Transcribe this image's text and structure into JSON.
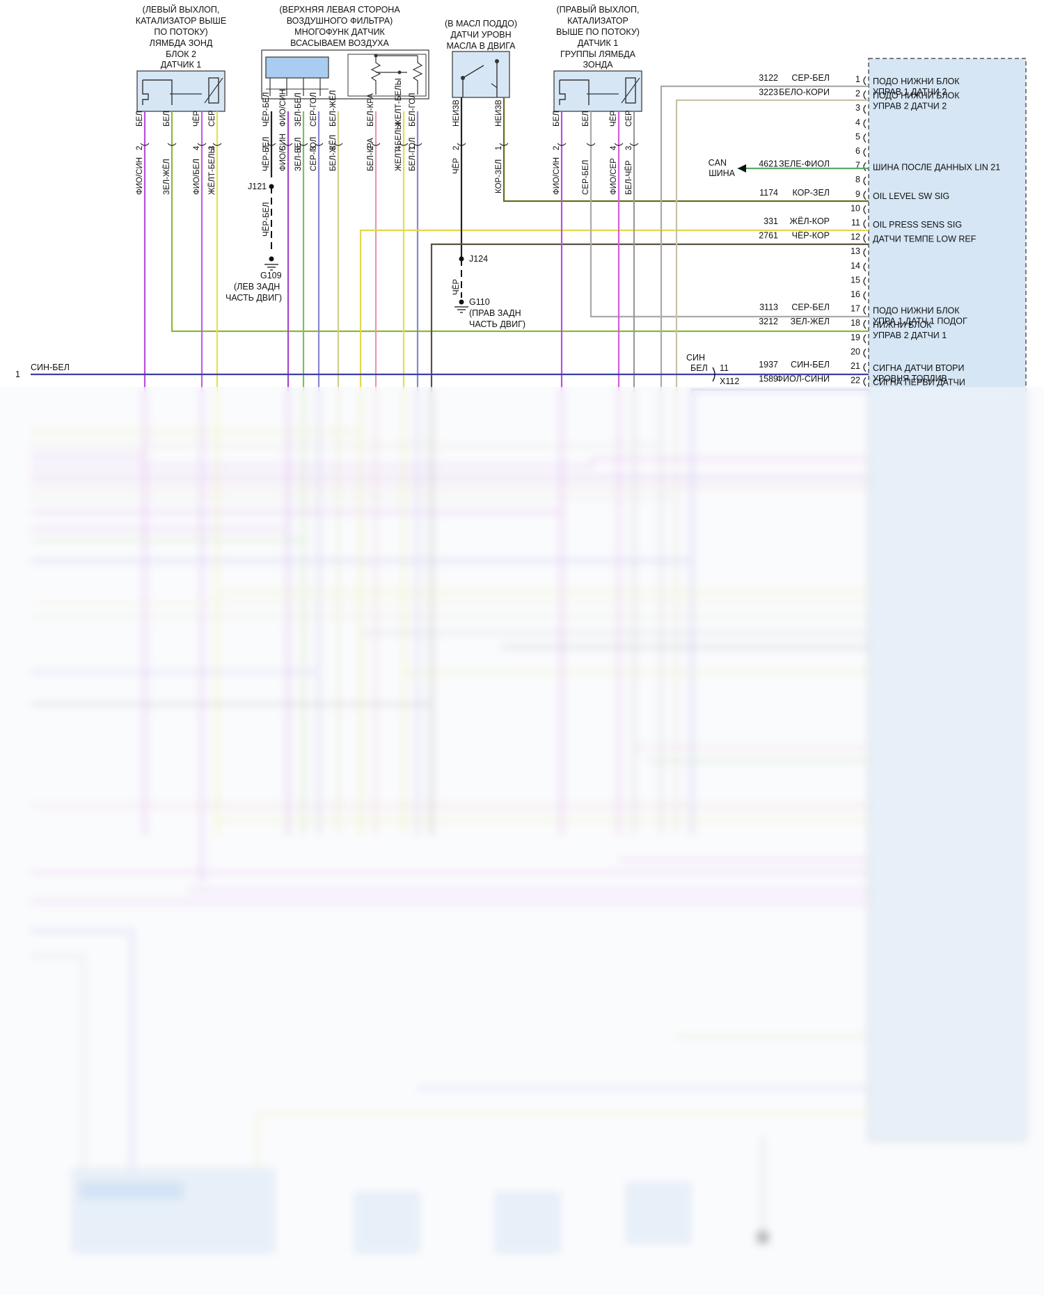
{
  "components": {
    "lambda_left": [
      "(ЛЕВЫЙ ВЫХЛОП,",
      "КАТАЛИЗАТОР ВЫШЕ",
      "ПО ПОТОКУ)",
      "ЛЯМБДА ЗОНД",
      "БЛОК 2",
      "ДАТЧИК 1"
    ],
    "maf": [
      "(ВЕРХНЯЯ ЛЕВАЯ СТОРОНА",
      "ВОЗДУШНОГО ФИЛЬТРА)",
      "МНОГОФУНК ДАТЧИК",
      "ВСАСЫВАЕМ ВОЗДУХА"
    ],
    "oil_level": [
      "(В МАСЛ ПОДДО)",
      "ДАТЧИ УРОВН",
      "МАСЛА В ДВИГА"
    ],
    "lambda_right": [
      "(ПРАВЫЙ ВЫХЛОП,",
      "КАТАЛИЗАТОР",
      "ВЫШЕ ПО ПОТОКУ)",
      "ДАТЧИК 1",
      "ГРУППЫ ЛЯМБДА",
      "ЗОНДА"
    ]
  },
  "pins": {
    "lambda_left": [
      {
        "num": "2",
        "color": "БЕЛ"
      },
      {
        "num": "",
        "color": "БЕЛ"
      },
      {
        "num": "4",
        "color": "ЧЁР"
      },
      {
        "num": "3",
        "color": "СЕР"
      }
    ],
    "maf": [
      {
        "num": "7",
        "color": "ЧЁР-БЕЛ"
      },
      {
        "num": "5",
        "color": "ФИО/СИН"
      },
      {
        "num": "6",
        "color": "ЗЕЛ-БЕЛ"
      },
      {
        "num": "8",
        "color": "СЕР-ГОЛ"
      },
      {
        "num": "3",
        "color": "БЕЛ-ЖЁЛ"
      },
      {
        "num": "2",
        "color": "БЕЛ-КРА"
      },
      {
        "num": "4",
        "color": "ЖЕЛТ-БЕЛЫ"
      },
      {
        "num": "1",
        "color": "БЕЛ-ГОЛ"
      }
    ],
    "oil_level": [
      {
        "num": "2",
        "color": "НЕИЗВ"
      },
      {
        "num": "1",
        "color": "НЕИЗВ"
      }
    ],
    "lambda_right": [
      {
        "num": "2",
        "color": "БЕЛ"
      },
      {
        "num": "",
        "color": "БЕЛ"
      },
      {
        "num": "4",
        "color": "ЧЁР"
      },
      {
        "num": "3",
        "color": "СЕР"
      }
    ]
  },
  "wires": {
    "lambda_left": [
      "ФИО/СИН",
      "ЗЕЛ-ЖЁЛ",
      "ФИО/БЕЛ",
      "ЖЁЛТ-БЕЛЫ"
    ],
    "maf_gnd": "ЧЁР-БЕЛ",
    "oil_gnd": "ЧЁР",
    "oil_left": "ЧЁР",
    "oil_right": "КОР-ЗЕЛ",
    "lambda_right": [
      "ФИО/СИН",
      "СЕР-БЕЛ",
      "ФИО/СЕР",
      "БЕЛ-ЧЁР"
    ]
  },
  "grounds": {
    "j121": "J121",
    "g109": "G109",
    "g109_desc": [
      "(ЛЕВ ЗАДН",
      "ЧАСТЬ ДВИГ)"
    ],
    "j124": "J124",
    "g110": "G110",
    "g110_desc": [
      "(ПРАВ ЗАДН",
      "ЧАСТЬ ДВИГ)"
    ]
  },
  "left_edge": {
    "num": "1",
    "label": "СИН-БЕЛ"
  },
  "connector_x112": {
    "top": "СИН",
    "mid": "БЕЛ",
    "pin": "11",
    "name": "X112"
  },
  "can_bus": [
    "CAN",
    "ШИНА"
  ],
  "ecu_pins": [
    {
      "pin": "1",
      "circuit": "3122",
      "color": "СЕР-БЕЛ",
      "desc": [
        "ПОДО НИЖНИ БЛОК",
        "УПРАВ 1 ДАТЧИ 2"
      ]
    },
    {
      "pin": "2",
      "circuit": "3223",
      "color": "БЕЛО-КОРИ",
      "desc": [
        "ПОДО НИЖНИ БЛОК",
        "УПРАВ 2 ДАТЧИ 2"
      ]
    },
    {
      "pin": "3",
      "circuit": "",
      "color": "",
      "desc": []
    },
    {
      "pin": "4",
      "circuit": "",
      "color": "",
      "desc": []
    },
    {
      "pin": "5",
      "circuit": "",
      "color": "",
      "desc": []
    },
    {
      "pin": "6",
      "circuit": "",
      "color": "",
      "desc": []
    },
    {
      "pin": "7",
      "circuit": "4621",
      "color": "ЗЕЛЕ-ФИОЛ",
      "desc": [
        "ШИНА ПОСЛЕ ДАННЫХ LIN 21"
      ]
    },
    {
      "pin": "8",
      "circuit": "",
      "color": "",
      "desc": []
    },
    {
      "pin": "9",
      "circuit": "1174",
      "color": "КОР-ЗЕЛ",
      "desc": [
        "OIL LEVEL SW SIG"
      ]
    },
    {
      "pin": "10",
      "circuit": "",
      "color": "",
      "desc": []
    },
    {
      "pin": "11",
      "circuit": "331",
      "color": "ЖЁЛ-КОР",
      "desc": [
        "OIL PRESS SENS SIG"
      ]
    },
    {
      "pin": "12",
      "circuit": "2761",
      "color": "ЧЁР-КОР",
      "desc": [
        "ДАТЧИ ТЕМПЕ LOW REF"
      ]
    },
    {
      "pin": "13",
      "circuit": "",
      "color": "",
      "desc": []
    },
    {
      "pin": "14",
      "circuit": "",
      "color": "",
      "desc": []
    },
    {
      "pin": "15",
      "circuit": "",
      "color": "",
      "desc": []
    },
    {
      "pin": "16",
      "circuit": "",
      "color": "",
      "desc": []
    },
    {
      "pin": "17",
      "circuit": "3113",
      "color": "СЕР-БЕЛ",
      "desc": [
        "ПОДО НИЖНИ БЛОК",
        "УПРА 1 ДАТЧ 1 ПОДОГ"
      ]
    },
    {
      "pin": "18",
      "circuit": "3212",
      "color": "ЗЕЛ-ЖЁЛ",
      "desc": [
        "НИЖНИ БЛОК",
        "УПРАВ 2 ДАТЧИ 1"
      ]
    },
    {
      "pin": "19",
      "circuit": "",
      "color": "",
      "desc": []
    },
    {
      "pin": "20",
      "circuit": "",
      "color": "",
      "desc": []
    },
    {
      "pin": "21",
      "circuit": "1937",
      "color": "СИН-БЕЛ",
      "desc": [
        "СИГНА ДАТЧИ ВТОРИ",
        "УРОВНЯ ТОПЛИВ"
      ]
    },
    {
      "pin": "22",
      "circuit": "1589",
      "color": "ФИОЛ-СИНИ",
      "desc": [
        "СИГНА ПЕРВИ ДАТЧИ"
      ]
    }
  ]
}
